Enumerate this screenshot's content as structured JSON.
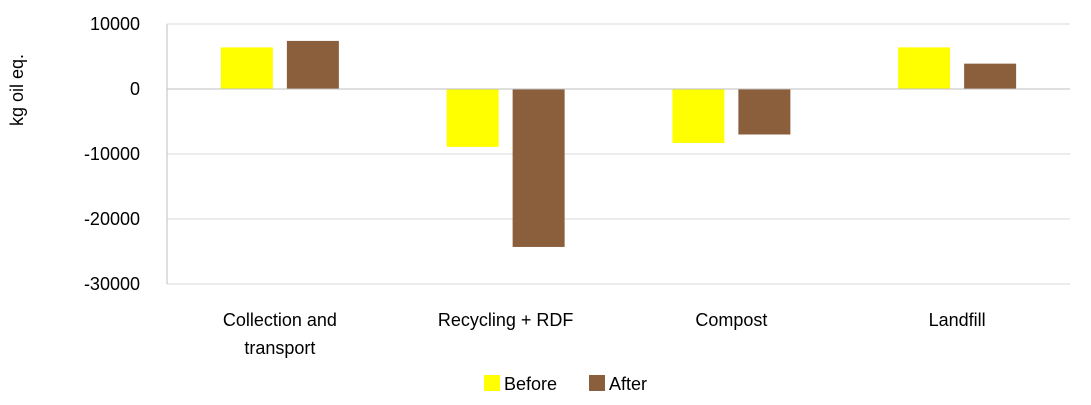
{
  "chart_data": {
    "type": "bar",
    "ylabel": "kg oil eq.",
    "xlabel": "",
    "categories": [
      [
        "Collection and",
        "transport"
      ],
      [
        "Recycling + RDF"
      ],
      [
        "Compost"
      ],
      [
        "Landfill"
      ]
    ],
    "series": [
      {
        "name": "Before",
        "color": "#ffff00",
        "values": [
          6400,
          -8900,
          -8300,
          6400
        ]
      },
      {
        "name": "After",
        "color": "#8b5e3c",
        "values": [
          7400,
          -24300,
          -7000,
          3900
        ]
      }
    ],
    "ylim": [
      -30000,
      10000
    ],
    "yticks": [
      10000,
      0,
      -10000,
      -20000,
      -30000
    ],
    "ytick_labels": [
      "10000",
      "0",
      "-10000",
      "-20000",
      "-30000"
    ],
    "grid": true,
    "legend_position": "bottom-center"
  }
}
